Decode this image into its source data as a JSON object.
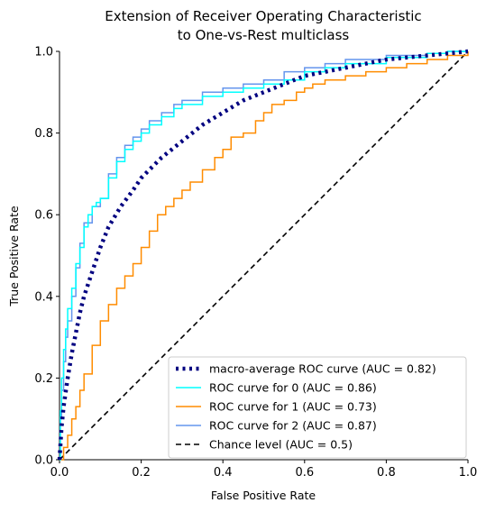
{
  "chart_data": {
    "type": "line",
    "title_lines": [
      "Extension of Receiver Operating Characteristic",
      "to One-vs-Rest multiclass"
    ],
    "xlabel": "False Positive Rate",
    "ylabel": "True Positive Rate",
    "xlim": [
      0,
      1
    ],
    "ylim": [
      0,
      1
    ],
    "xticks": [
      "0.0",
      "0.2",
      "0.4",
      "0.6",
      "0.8",
      "1.0"
    ],
    "yticks": [
      "0.0",
      "0.2",
      "0.4",
      "0.6",
      "0.8",
      "1.0"
    ],
    "grid": false,
    "legend_position": "lower-right",
    "series": [
      {
        "name": "macro-average ROC curve (AUC = 0.82)",
        "color": "#000080",
        "style": "dotted",
        "x": [
          0,
          0.005,
          0.01,
          0.02,
          0.03,
          0.04,
          0.05,
          0.06,
          0.08,
          0.1,
          0.12,
          0.15,
          0.18,
          0.2,
          0.25,
          0.3,
          0.35,
          0.4,
          0.45,
          0.5,
          0.55,
          0.6,
          0.65,
          0.7,
          0.75,
          0.8,
          0.85,
          0.9,
          0.95,
          1.0
        ],
        "y": [
          0,
          0.08,
          0.13,
          0.2,
          0.26,
          0.31,
          0.36,
          0.4,
          0.46,
          0.52,
          0.57,
          0.62,
          0.66,
          0.69,
          0.74,
          0.78,
          0.82,
          0.85,
          0.88,
          0.9,
          0.92,
          0.94,
          0.95,
          0.96,
          0.97,
          0.98,
          0.985,
          0.99,
          0.995,
          1.0
        ]
      },
      {
        "name": "ROC curve for 0 (AUC = 0.86)",
        "color": "#00ffff",
        "style": "solid",
        "x": [
          0,
          0.002,
          0.005,
          0.01,
          0.015,
          0.02,
          0.03,
          0.04,
          0.05,
          0.06,
          0.07,
          0.08,
          0.09,
          0.1,
          0.12,
          0.14,
          0.16,
          0.18,
          0.2,
          0.22,
          0.25,
          0.28,
          0.3,
          0.35,
          0.4,
          0.45,
          0.5,
          0.55,
          0.6,
          0.65,
          0.7,
          0.8,
          0.9,
          0.95,
          1.0
        ],
        "y": [
          0,
          0.12,
          0.2,
          0.27,
          0.32,
          0.37,
          0.42,
          0.48,
          0.52,
          0.57,
          0.6,
          0.62,
          0.63,
          0.64,
          0.69,
          0.73,
          0.76,
          0.78,
          0.8,
          0.82,
          0.84,
          0.86,
          0.87,
          0.89,
          0.9,
          0.91,
          0.92,
          0.93,
          0.95,
          0.96,
          0.97,
          0.985,
          0.995,
          1.0,
          1.0
        ]
      },
      {
        "name": "ROC curve for 1 (AUC = 0.73)",
        "color": "#ff8c00",
        "style": "solid",
        "x": [
          0,
          0.01,
          0.02,
          0.03,
          0.04,
          0.05,
          0.06,
          0.08,
          0.1,
          0.12,
          0.14,
          0.16,
          0.18,
          0.2,
          0.22,
          0.24,
          0.26,
          0.28,
          0.3,
          0.32,
          0.35,
          0.38,
          0.4,
          0.42,
          0.45,
          0.48,
          0.5,
          0.52,
          0.55,
          0.58,
          0.6,
          0.62,
          0.65,
          0.7,
          0.75,
          0.8,
          0.85,
          0.9,
          0.95,
          1.0
        ],
        "y": [
          0,
          0.03,
          0.06,
          0.1,
          0.13,
          0.17,
          0.21,
          0.28,
          0.34,
          0.38,
          0.42,
          0.45,
          0.48,
          0.52,
          0.56,
          0.6,
          0.62,
          0.64,
          0.66,
          0.68,
          0.71,
          0.74,
          0.76,
          0.79,
          0.8,
          0.83,
          0.85,
          0.87,
          0.88,
          0.9,
          0.91,
          0.92,
          0.93,
          0.94,
          0.95,
          0.96,
          0.97,
          0.98,
          0.99,
          1.0
        ]
      },
      {
        "name": "ROC curve for 2 (AUC = 0.87)",
        "color": "#6495ed",
        "style": "solid",
        "x": [
          0,
          0.002,
          0.005,
          0.01,
          0.015,
          0.02,
          0.03,
          0.04,
          0.05,
          0.06,
          0.08,
          0.1,
          0.12,
          0.14,
          0.16,
          0.18,
          0.2,
          0.22,
          0.25,
          0.28,
          0.3,
          0.35,
          0.4,
          0.45,
          0.5,
          0.55,
          0.6,
          0.65,
          0.7,
          0.8,
          0.9,
          0.95,
          1.0
        ],
        "y": [
          0,
          0.1,
          0.17,
          0.24,
          0.3,
          0.34,
          0.4,
          0.47,
          0.53,
          0.58,
          0.62,
          0.64,
          0.7,
          0.74,
          0.77,
          0.79,
          0.81,
          0.83,
          0.85,
          0.87,
          0.88,
          0.9,
          0.91,
          0.92,
          0.93,
          0.95,
          0.96,
          0.97,
          0.98,
          0.99,
          0.995,
          1.0,
          1.0
        ]
      },
      {
        "name": "Chance level (AUC = 0.5)",
        "color": "#000000",
        "style": "dashed",
        "x": [
          0,
          1
        ],
        "y": [
          0,
          1
        ]
      }
    ]
  }
}
